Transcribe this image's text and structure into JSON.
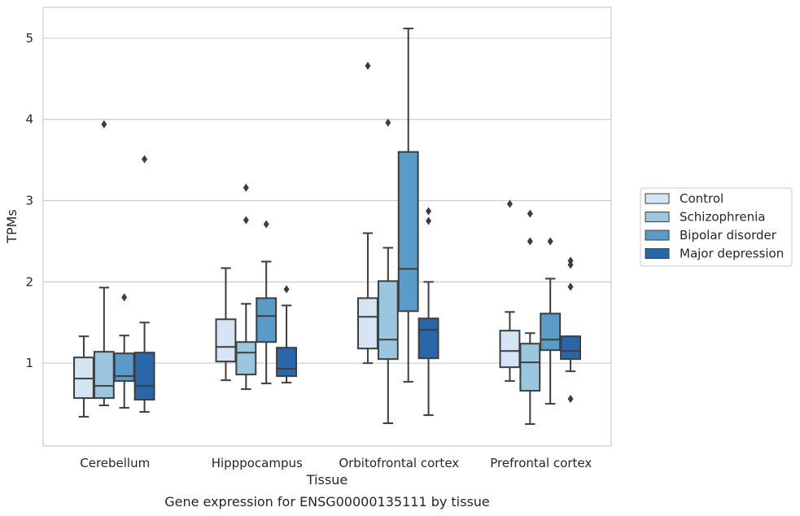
{
  "chart_data": {
    "type": "box",
    "title": "Gene expression for ENSG00000135111 by tissue",
    "xlabel": "Tissue",
    "ylabel": "TPMs",
    "ylim": [
      -0.02,
      5.38
    ],
    "yticks": [
      1,
      2,
      3,
      4,
      5
    ],
    "grid": true,
    "legend_position": "right",
    "categories": [
      "Cerebellum",
      "Hipppocampus",
      "Orbitofrontal cortex",
      "Prefrontal cortex"
    ],
    "series": [
      {
        "name": "Control",
        "color": "#d6e5f4",
        "boxes": [
          {
            "whisker_low": 0.34,
            "q1": 0.57,
            "median": 0.81,
            "q3": 1.07,
            "whisker_high": 1.33,
            "outliers": []
          },
          {
            "whisker_low": 0.79,
            "q1": 1.02,
            "median": 1.2,
            "q3": 1.54,
            "whisker_high": 2.17,
            "outliers": []
          },
          {
            "whisker_low": 1.0,
            "q1": 1.18,
            "median": 1.57,
            "q3": 1.8,
            "whisker_high": 2.6,
            "outliers": [
              4.66
            ]
          },
          {
            "whisker_low": 0.78,
            "q1": 0.95,
            "median": 1.15,
            "q3": 1.4,
            "whisker_high": 1.63,
            "outliers": [
              2.96
            ]
          }
        ]
      },
      {
        "name": "Schizophrenia",
        "color": "#9ac6df",
        "boxes": [
          {
            "whisker_low": 0.48,
            "q1": 0.57,
            "median": 0.72,
            "q3": 1.14,
            "whisker_high": 1.93,
            "outliers": [
              3.94
            ]
          },
          {
            "whisker_low": 0.68,
            "q1": 0.86,
            "median": 1.13,
            "q3": 1.26,
            "whisker_high": 1.73,
            "outliers": [
              3.16,
              2.76
            ]
          },
          {
            "whisker_low": 0.26,
            "q1": 1.05,
            "median": 1.29,
            "q3": 2.01,
            "whisker_high": 2.42,
            "outliers": [
              3.96
            ]
          },
          {
            "whisker_low": 0.25,
            "q1": 0.66,
            "median": 1.01,
            "q3": 1.24,
            "whisker_high": 1.37,
            "outliers": [
              2.84,
              2.5
            ]
          }
        ]
      },
      {
        "name": "Bipolar disorder",
        "color": "#5b9bc8",
        "boxes": [
          {
            "whisker_low": 0.45,
            "q1": 0.78,
            "median": 0.84,
            "q3": 1.12,
            "whisker_high": 1.34,
            "outliers": [
              1.81
            ]
          },
          {
            "whisker_low": 0.75,
            "q1": 1.26,
            "median": 1.58,
            "q3": 1.8,
            "whisker_high": 2.25,
            "outliers": [
              2.71
            ]
          },
          {
            "whisker_low": 0.77,
            "q1": 1.64,
            "median": 2.16,
            "q3": 3.6,
            "whisker_high": 5.12,
            "outliers": []
          },
          {
            "whisker_low": 0.5,
            "q1": 1.16,
            "median": 1.29,
            "q3": 1.61,
            "whisker_high": 2.04,
            "outliers": [
              2.5
            ]
          }
        ]
      },
      {
        "name": "Major depression",
        "color": "#2967a9",
        "boxes": [
          {
            "whisker_low": 0.4,
            "q1": 0.55,
            "median": 0.72,
            "q3": 1.13,
            "whisker_high": 1.5,
            "outliers": [
              3.51
            ]
          },
          {
            "whisker_low": 0.76,
            "q1": 0.84,
            "median": 0.93,
            "q3": 1.19,
            "whisker_high": 1.71,
            "outliers": [
              1.91
            ]
          },
          {
            "whisker_low": 0.36,
            "q1": 1.06,
            "median": 1.41,
            "q3": 1.55,
            "whisker_high": 2.0,
            "outliers": [
              2.87,
              2.75
            ]
          },
          {
            "whisker_low": 0.9,
            "q1": 1.05,
            "median": 1.15,
            "q3": 1.33,
            "whisker_high": 1.33,
            "outliers": [
              2.26,
              2.21,
              1.94,
              0.56
            ]
          }
        ]
      }
    ]
  }
}
